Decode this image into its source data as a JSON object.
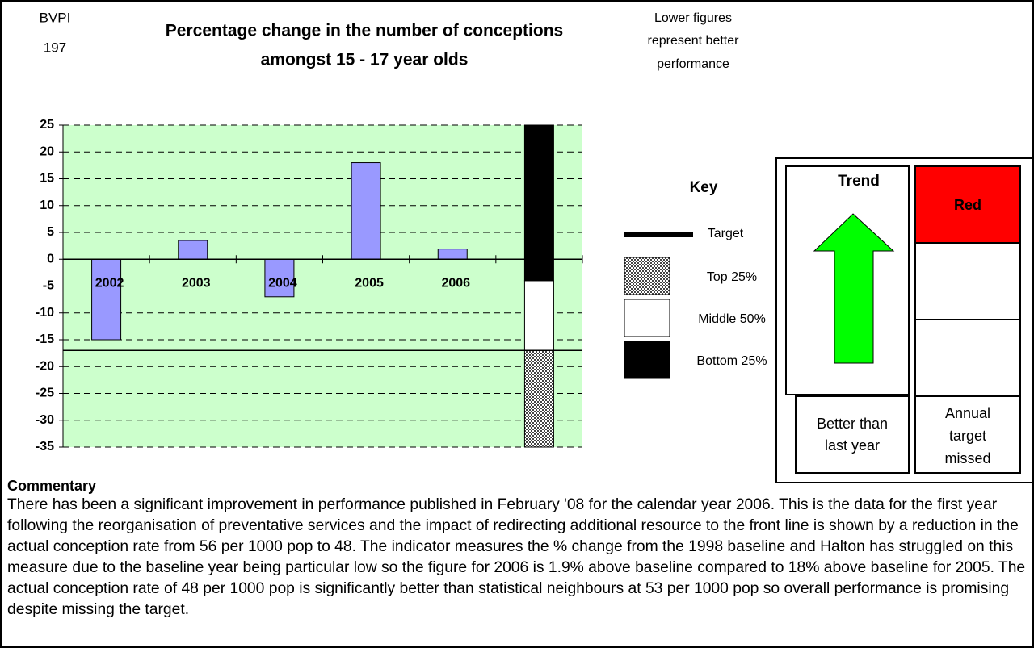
{
  "header": {
    "code": [
      "BVPI",
      "197"
    ],
    "title": [
      "Percentage change in the number of conceptions",
      "amongst 15 - 17 year olds"
    ],
    "note": [
      "Lower figures",
      "represent better",
      "performance"
    ]
  },
  "chart_data": {
    "type": "bar",
    "categories": [
      "2002",
      "2003",
      "2004",
      "2005",
      "2006",
      null
    ],
    "values": [
      -15,
      3.5,
      -7,
      18,
      1.9,
      null
    ],
    "color": "#9999ff",
    "ylim": [
      -35,
      25
    ],
    "yticks": [
      -35,
      -30,
      -25,
      -20,
      -15,
      -10,
      -5,
      0,
      5,
      10,
      15,
      20,
      25
    ],
    "grid": true,
    "plot_color": "#ccffcc",
    "target": -17,
    "bands": [
      {
        "name": "Top 25%",
        "from": -35,
        "to": -17,
        "pattern": "checker"
      },
      {
        "name": "Middle 50%",
        "from": -17,
        "to": -4,
        "color": "#ffffff"
      },
      {
        "name": "Bottom 25%",
        "from": -4,
        "to": 25,
        "color": "#000000"
      }
    ],
    "key": {
      "title": "Key",
      "target": "Target"
    }
  },
  "status": {
    "trend_title": "Trend",
    "trend_label": [
      "Better than",
      "last year"
    ],
    "trend_color": "#00ff00",
    "rating": "Red",
    "rating_color": "#ff0000",
    "rating_label": [
      "Annual",
      "target",
      "missed"
    ]
  },
  "commentary": {
    "title": "Commentary",
    "text": "There has been a significant improvement in performance published in February '08 for the calendar year 2006. This is the data for the first year following the reorganisation of preventative services and the impact of redirecting additional resource to the front line is shown by a reduction in the actual conception rate from 56 per 1000 pop to 48.  The indicator measures the % change from the 1998 baseline and Halton has struggled on this measure due to the baseline year being particular low so the figure for 2006 is 1.9% above baseline compared to 18% above baseline for 2005.  The actual conception rate of 48 per 1000 pop is significantly better than statistical neighbours at 53 per 1000 pop so overall performance is promising despite missing the target."
  }
}
